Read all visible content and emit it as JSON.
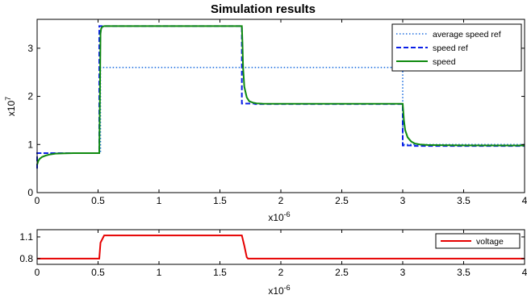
{
  "chart_data": [
    {
      "type": "line",
      "title": "Simulation results",
      "ylabel": "x10",
      "ylabel_exponent": "7",
      "xlabel": "x10",
      "xlabel_exponent": "-6",
      "xlim": [
        0,
        4
      ],
      "ylim": [
        0,
        3.6
      ],
      "x_ticks": [
        "0",
        "0.5",
        "1",
        "1.5",
        "2",
        "2.5",
        "3",
        "3.5",
        "4"
      ],
      "y_ticks": [
        "0",
        "1",
        "2",
        "3"
      ],
      "grid": false,
      "legend_position": "top-right",
      "series": [
        {
          "name": "average speed ref",
          "color": "#1f6fe0",
          "style": "dotted",
          "x": [
            0,
            0.52,
            0.52,
            3.0,
            3.0,
            4.0
          ],
          "y": [
            0.82,
            0.82,
            2.6,
            2.6,
            1.0,
            1.0
          ]
        },
        {
          "name": "speed ref",
          "color": "#0a1fe6",
          "style": "dashed",
          "x": [
            0,
            0.0,
            0.51,
            0.51,
            1.68,
            1.68,
            1.79,
            1.79,
            3.0,
            3.0,
            3.1,
            3.1,
            4.0
          ],
          "y": [
            0.5,
            0.82,
            0.82,
            3.46,
            3.46,
            1.85,
            1.85,
            1.84,
            1.84,
            0.98,
            0.98,
            0.97,
            0.97
          ]
        },
        {
          "name": "speed",
          "color": "#0f8a0f",
          "style": "solid",
          "x": [
            0,
            0.005,
            0.01,
            0.02,
            0.04,
            0.07,
            0.1,
            0.15,
            0.2,
            0.3,
            0.4,
            0.51,
            0.515,
            0.52,
            0.525,
            0.53,
            0.54,
            0.55,
            0.6,
            1.0,
            1.5,
            1.68,
            1.685,
            1.69,
            1.7,
            1.72,
            1.74,
            1.77,
            1.8,
            1.85,
            1.9,
            2.5,
            3.0,
            3.01,
            3.02,
            3.04,
            3.07,
            3.1,
            3.14,
            3.2,
            3.3,
            3.5,
            4.0
          ],
          "y": [
            0.58,
            0.62,
            0.66,
            0.7,
            0.74,
            0.77,
            0.79,
            0.81,
            0.815,
            0.82,
            0.82,
            0.82,
            1.9,
            3.3,
            3.4,
            3.43,
            3.45,
            3.46,
            3.46,
            3.46,
            3.46,
            3.46,
            3.1,
            2.6,
            2.2,
            1.98,
            1.9,
            1.87,
            1.855,
            1.848,
            1.845,
            1.845,
            1.845,
            1.5,
            1.3,
            1.15,
            1.06,
            1.02,
            1.0,
            0.99,
            0.985,
            0.982,
            0.98
          ]
        }
      ]
    },
    {
      "type": "line",
      "title": "",
      "xlabel": "x10",
      "xlabel_exponent": "-6",
      "xlim": [
        0,
        4
      ],
      "ylim": [
        0.72,
        1.2
      ],
      "x_ticks": [
        "0",
        "0.5",
        "1",
        "1.5",
        "2",
        "2.5",
        "3",
        "3.5",
        "4"
      ],
      "y_ticks": [
        "0.8",
        "1.1"
      ],
      "grid": false,
      "legend_position": "top-right",
      "series": [
        {
          "name": "voltage",
          "color": "#e60000",
          "style": "solid",
          "x": [
            0,
            0.51,
            0.52,
            0.55,
            1.68,
            1.7,
            1.72,
            1.73,
            4.0
          ],
          "y": [
            0.8,
            0.8,
            1.02,
            1.12,
            1.12,
            0.98,
            0.82,
            0.8,
            0.8
          ]
        }
      ]
    }
  ]
}
